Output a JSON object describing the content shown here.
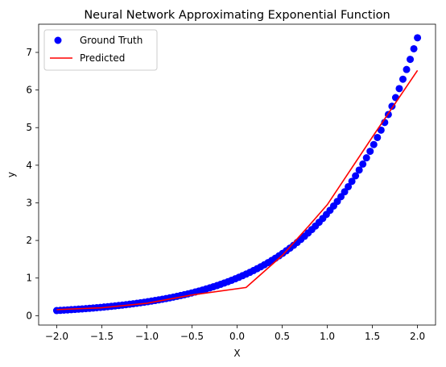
{
  "chart_data": {
    "type": "scatter+line",
    "title": "Neural Network Approximating Exponential Function",
    "xlabel": "X",
    "ylabel": "y",
    "xlim": [
      -2.2,
      2.2
    ],
    "ylim": [
      -0.25,
      7.75
    ],
    "xticks": [
      -2.0,
      -1.5,
      -1.0,
      -0.5,
      0.0,
      0.5,
      1.0,
      1.5,
      2.0
    ],
    "xtick_labels": [
      "−2.0",
      "−1.5",
      "−1.0",
      "−0.5",
      "0.0",
      "0.5",
      "1.0",
      "1.5",
      "2.0"
    ],
    "yticks": [
      0,
      1,
      2,
      3,
      4,
      5,
      6,
      7
    ],
    "ytick_labels": [
      "0",
      "1",
      "2",
      "3",
      "4",
      "5",
      "6",
      "7"
    ],
    "grid": false,
    "legend_position": "upper-left",
    "series": [
      {
        "name": "Ground Truth",
        "kind": "scatter",
        "color": "#0000ff",
        "function": "exp(x)",
        "x_range": [
          -2.0,
          2.0
        ],
        "num_points": 100
      },
      {
        "name": "Predicted",
        "kind": "line",
        "color": "#ff0000",
        "x": [
          -2.0,
          -1.5,
          -1.0,
          -0.5,
          0.1,
          0.5,
          0.8,
          1.0,
          1.5,
          2.0
        ],
        "y": [
          0.16,
          0.21,
          0.33,
          0.55,
          0.75,
          1.6,
          2.4,
          2.95,
          4.75,
          6.52
        ]
      }
    ]
  }
}
